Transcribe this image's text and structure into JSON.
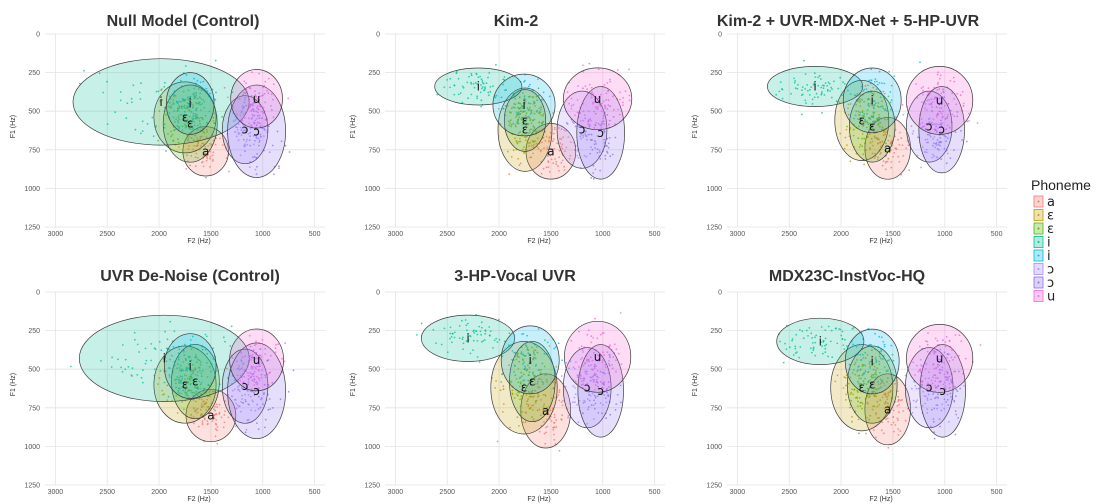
{
  "legend": {
    "title": "Phoneme",
    "position": "right",
    "items": [
      {
        "label": "a",
        "color": "#f4766e"
      },
      {
        "label": "ɛ",
        "color": "#c49a00"
      },
      {
        "label": "ɛ̃",
        "display": "ɛ",
        "color": "#53b400"
      },
      {
        "label": "i",
        "color": "#00c094"
      },
      {
        "label": "ĩ",
        "display": "i",
        "color": "#00b6eb"
      },
      {
        "label": "ɔ",
        "display": "ɔ",
        "color": "#a58aff"
      },
      {
        "label": "ɔ̃",
        "display": "ɔ",
        "color": "#8c6cf0"
      },
      {
        "label": "u",
        "color": "#fb61d7"
      }
    ]
  },
  "chart_data": [
    {
      "type": "scatter",
      "title": "Null Model (Control)",
      "xlabel": "F2 (Hz)",
      "ylabel": "F1 (Hz)",
      "xlim": [
        3100,
        400
      ],
      "ylim": [
        0,
        1250
      ],
      "x_ticks": [
        3000,
        2500,
        2000,
        1500,
        1000,
        500
      ],
      "y_ticks": [
        0,
        250,
        500,
        750,
        1000,
        1250
      ],
      "grid": true,
      "series": [
        {
          "name": "a",
          "center": [
            1550,
            760
          ],
          "spread": [
            220,
            160
          ]
        },
        {
          "name": "ɛ",
          "center": [
            1750,
            540
          ],
          "spread": [
            300,
            230
          ]
        },
        {
          "name": "ɛ̃",
          "center": [
            1700,
            580
          ],
          "spread": [
            260,
            250
          ]
        },
        {
          "name": "i",
          "center": [
            1980,
            440
          ],
          "spread": [
            850,
            280
          ]
        },
        {
          "name": "ĩ",
          "center": [
            1700,
            450
          ],
          "spread": [
            230,
            200
          ]
        },
        {
          "name": "ɔ",
          "center": [
            1170,
            620
          ],
          "spread": [
            220,
            220
          ]
        },
        {
          "name": "ɔ̃",
          "center": [
            1060,
            630
          ],
          "spread": [
            280,
            300
          ]
        },
        {
          "name": "u",
          "center": [
            1060,
            420
          ],
          "spread": [
            250,
            190
          ]
        }
      ]
    },
    {
      "type": "scatter",
      "title": "Kim-2",
      "xlabel": "F2 (Hz)",
      "ylabel": "F1 (Hz)",
      "xlim": [
        3100,
        400
      ],
      "ylim": [
        0,
        1250
      ],
      "x_ticks": [
        3000,
        2500,
        2000,
        1500,
        1000,
        500
      ],
      "y_ticks": [
        0,
        250,
        500,
        750,
        1000,
        1250
      ],
      "grid": true,
      "series": [
        {
          "name": "a",
          "center": [
            1500,
            760
          ],
          "spread": [
            240,
            180
          ]
        },
        {
          "name": "ɛ",
          "center": [
            1750,
            620
          ],
          "spread": [
            260,
            270
          ]
        },
        {
          "name": "ɛ̃",
          "center": [
            1750,
            560
          ],
          "spread": [
            200,
            200
          ]
        },
        {
          "name": "i",
          "center": [
            2200,
            340
          ],
          "spread": [
            420,
            120
          ]
        },
        {
          "name": "ĩ",
          "center": [
            1760,
            460
          ],
          "spread": [
            300,
            200
          ]
        },
        {
          "name": "ɔ",
          "center": [
            1200,
            620
          ],
          "spread": [
            240,
            250
          ]
        },
        {
          "name": "ɔ̃",
          "center": [
            1020,
            640
          ],
          "spread": [
            230,
            300
          ]
        },
        {
          "name": "u",
          "center": [
            1050,
            420
          ],
          "spread": [
            330,
            200
          ]
        }
      ]
    },
    {
      "type": "scatter",
      "title": "Kim-2 + UVR-MDX-Net + 5-HP-UVR",
      "xlabel": "F2 (Hz)",
      "ylabel": "F1 (Hz)",
      "xlim": [
        3100,
        400
      ],
      "ylim": [
        0,
        1250
      ],
      "x_ticks": [
        3000,
        2500,
        2000,
        1500,
        1000,
        500
      ],
      "y_ticks": [
        0,
        250,
        500,
        750,
        1000,
        1250
      ],
      "grid": true,
      "series": [
        {
          "name": "a",
          "center": [
            1550,
            740
          ],
          "spread": [
            220,
            200
          ]
        },
        {
          "name": "ɛ",
          "center": [
            1800,
            560
          ],
          "spread": [
            260,
            260
          ]
        },
        {
          "name": "ɛ̃",
          "center": [
            1700,
            600
          ],
          "spread": [
            220,
            230
          ]
        },
        {
          "name": "i",
          "center": [
            2250,
            340
          ],
          "spread": [
            460,
            130
          ]
        },
        {
          "name": "ĩ",
          "center": [
            1700,
            430
          ],
          "spread": [
            280,
            210
          ]
        },
        {
          "name": "ɔ",
          "center": [
            1150,
            600
          ],
          "spread": [
            220,
            230
          ]
        },
        {
          "name": "ɔ̃",
          "center": [
            1030,
            620
          ],
          "spread": [
            220,
            280
          ]
        },
        {
          "name": "u",
          "center": [
            1050,
            430
          ],
          "spread": [
            320,
            220
          ]
        }
      ]
    },
    {
      "type": "scatter",
      "title": "UVR De-Noise (Control)",
      "xlabel": "F2 (Hz)",
      "ylabel": "F1 (Hz)",
      "xlim": [
        3100,
        400
      ],
      "ylim": [
        0,
        1250
      ],
      "x_ticks": [
        3000,
        2500,
        2000,
        1500,
        1000,
        500
      ],
      "y_ticks": [
        0,
        250,
        500,
        750,
        1000,
        1250
      ],
      "grid": true,
      "series": [
        {
          "name": "a",
          "center": [
            1500,
            800
          ],
          "spread": [
            240,
            170
          ]
        },
        {
          "name": "ɛ",
          "center": [
            1750,
            600
          ],
          "spread": [
            300,
            250
          ]
        },
        {
          "name": "ɛ̃",
          "center": [
            1650,
            580
          ],
          "spread": [
            230,
            240
          ]
        },
        {
          "name": "i",
          "center": [
            1950,
            430
          ],
          "spread": [
            820,
            280
          ]
        },
        {
          "name": "ĩ",
          "center": [
            1700,
            480
          ],
          "spread": [
            250,
            210
          ]
        },
        {
          "name": "ɔ",
          "center": [
            1170,
            610
          ],
          "spread": [
            220,
            240
          ]
        },
        {
          "name": "ɔ̃",
          "center": [
            1060,
            640
          ],
          "spread": [
            280,
            310
          ]
        },
        {
          "name": "u",
          "center": [
            1060,
            440
          ],
          "spread": [
            260,
            200
          ]
        }
      ]
    },
    {
      "type": "scatter",
      "title": "3-HP-Vocal UVR",
      "xlabel": "F2 (Hz)",
      "ylabel": "F1 (Hz)",
      "xlim": [
        3100,
        400
      ],
      "ylim": [
        0,
        1250
      ],
      "x_ticks": [
        3000,
        2500,
        2000,
        1500,
        1000,
        500
      ],
      "y_ticks": [
        0,
        250,
        500,
        750,
        1000,
        1250
      ],
      "grid": true,
      "series": [
        {
          "name": "a",
          "center": [
            1550,
            770
          ],
          "spread": [
            240,
            240
          ]
        },
        {
          "name": "ɛ",
          "center": [
            1760,
            620
          ],
          "spread": [
            320,
            300
          ]
        },
        {
          "name": "ɛ̃",
          "center": [
            1680,
            580
          ],
          "spread": [
            220,
            260
          ]
        },
        {
          "name": "i",
          "center": [
            2300,
            300
          ],
          "spread": [
            450,
            150
          ]
        },
        {
          "name": "ĩ",
          "center": [
            1700,
            440
          ],
          "spread": [
            280,
            220
          ]
        },
        {
          "name": "ɔ",
          "center": [
            1150,
            620
          ],
          "spread": [
            230,
            260
          ]
        },
        {
          "name": "ɔ̃",
          "center": [
            1020,
            640
          ],
          "spread": [
            220,
            300
          ]
        },
        {
          "name": "u",
          "center": [
            1050,
            420
          ],
          "spread": [
            320,
            230
          ]
        }
      ]
    },
    {
      "type": "scatter",
      "title": "MDX23C-InstVoc-HQ",
      "xlabel": "F2 (Hz)",
      "ylabel": "F1 (Hz)",
      "xlim": [
        3100,
        400
      ],
      "ylim": [
        0,
        1250
      ],
      "x_ticks": [
        3000,
        2500,
        2000,
        1500,
        1000,
        500
      ],
      "y_ticks": [
        0,
        250,
        500,
        750,
        1000,
        1250
      ],
      "grid": true,
      "series": [
        {
          "name": "a",
          "center": [
            1550,
            760
          ],
          "spread": [
            220,
            230
          ]
        },
        {
          "name": "ɛ",
          "center": [
            1800,
            620
          ],
          "spread": [
            300,
            280
          ]
        },
        {
          "name": "ɛ̃",
          "center": [
            1700,
            600
          ],
          "spread": [
            240,
            250
          ]
        },
        {
          "name": "i",
          "center": [
            2200,
            320
          ],
          "spread": [
            420,
            150
          ]
        },
        {
          "name": "ĩ",
          "center": [
            1700,
            450
          ],
          "spread": [
            260,
            210
          ]
        },
        {
          "name": "ɔ",
          "center": [
            1150,
            620
          ],
          "spread": [
            230,
            260
          ]
        },
        {
          "name": "ɔ̃",
          "center": [
            1020,
            640
          ],
          "spread": [
            220,
            300
          ]
        },
        {
          "name": "u",
          "center": [
            1050,
            430
          ],
          "spread": [
            320,
            220
          ]
        }
      ]
    }
  ]
}
